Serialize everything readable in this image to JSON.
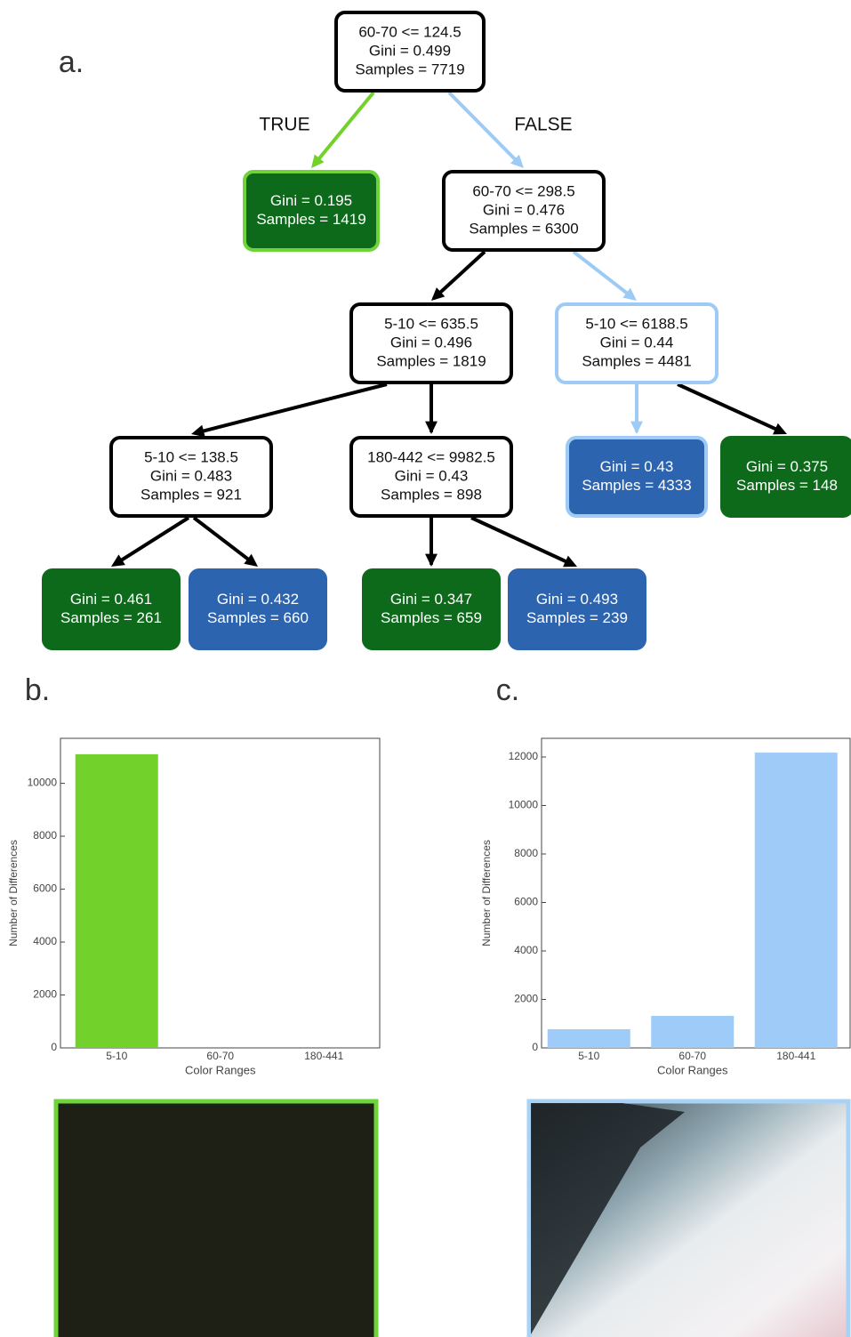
{
  "panel_labels": [
    "a.",
    "b.",
    "c."
  ],
  "tree": {
    "nodes": [
      {
        "lines": [
          "60-70 <=  124.5",
          "Gini = 0.499",
          "Samples = 7719"
        ]
      },
      {
        "lines": [
          "Gini = 0.195",
          "Samples = 1419"
        ]
      },
      {
        "lines": [
          "60-70 <= 298.5",
          "Gini = 0.476",
          "Samples = 6300"
        ]
      },
      {
        "lines": [
          "5-10 <= 635.5",
          "Gini = 0.496",
          "Samples = 1819"
        ]
      },
      {
        "lines": [
          "5-10 <= 6188.5",
          "Gini = 0.44",
          "Samples = 4481"
        ]
      },
      {
        "lines": [
          "5-10 <= 138.5",
          "Gini = 0.483",
          "Samples = 921"
        ]
      },
      {
        "lines": [
          "180-442 <= 9982.5",
          "Gini = 0.43",
          "Samples = 898"
        ]
      },
      {
        "lines": [
          "Gini = 0.43",
          "Samples = 4333"
        ]
      },
      {
        "lines": [
          "Gini = 0.375",
          "Samples = 148"
        ]
      },
      {
        "lines": [
          "Gini = 0.461",
          "Samples = 261"
        ]
      },
      {
        "lines": [
          "Gini = 0.432",
          "Samples = 660"
        ]
      },
      {
        "lines": [
          "Gini = 0.347",
          "Samples = 659"
        ]
      },
      {
        "lines": [
          "Gini = 0.493",
          "Samples = 239"
        ]
      }
    ],
    "edge_labels": [
      "TRUE",
      "FALSE"
    ]
  },
  "chart_data": [
    {
      "type": "bar",
      "categories": [
        "5-10",
        "60-70",
        "180-441"
      ],
      "values": [
        11100,
        0,
        0
      ],
      "color": "#72d12a",
      "ylim": [
        0,
        11700
      ],
      "yticks": [
        0,
        2000,
        4000,
        6000,
        8000,
        10000
      ],
      "x_label": "Color Ranges",
      "y_label": "Number of Differences"
    },
    {
      "type": "bar",
      "categories": [
        "5-10",
        "60-70",
        "180-441"
      ],
      "values": [
        770,
        1320,
        12180
      ],
      "color": "#9ecbf8",
      "ylim": [
        0,
        12770
      ],
      "yticks": [
        0,
        2000,
        4000,
        6000,
        8000,
        10000,
        12000
      ],
      "x_label": "Color Ranges",
      "y_label": "Number of Differences"
    }
  ]
}
